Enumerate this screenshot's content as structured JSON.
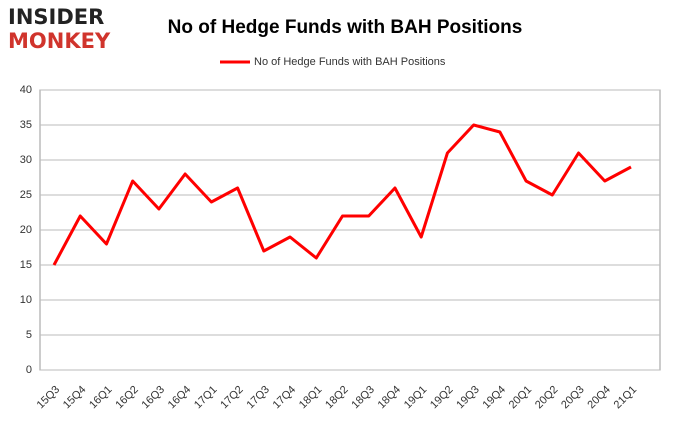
{
  "logo": {
    "line1": "INSIDER",
    "line2": "MONKEY"
  },
  "chart_data": {
    "type": "line",
    "title": "No of Hedge Funds with BAH Positions",
    "categories": [
      "15Q3",
      "15Q4",
      "16Q1",
      "16Q2",
      "16Q3",
      "16Q4",
      "17Q1",
      "17Q2",
      "17Q3",
      "17Q4",
      "18Q1",
      "18Q2",
      "18Q3",
      "18Q4",
      "19Q1",
      "19Q2",
      "19Q3",
      "19Q4",
      "20Q1",
      "20Q2",
      "20Q3",
      "20Q4",
      "21Q1"
    ],
    "series": [
      {
        "name": "No of Hedge Funds with BAH Positions",
        "color": "#ff0000",
        "values": [
          15,
          22,
          18,
          27,
          23,
          28,
          24,
          26,
          17,
          19,
          16,
          22,
          22,
          26,
          19,
          31,
          35,
          34,
          27,
          25,
          31,
          27,
          29
        ]
      }
    ],
    "ylim": [
      0,
      40
    ],
    "yticks": [
      0,
      5,
      10,
      15,
      20,
      25,
      30,
      35,
      40
    ],
    "grid": true,
    "legend": "top"
  }
}
